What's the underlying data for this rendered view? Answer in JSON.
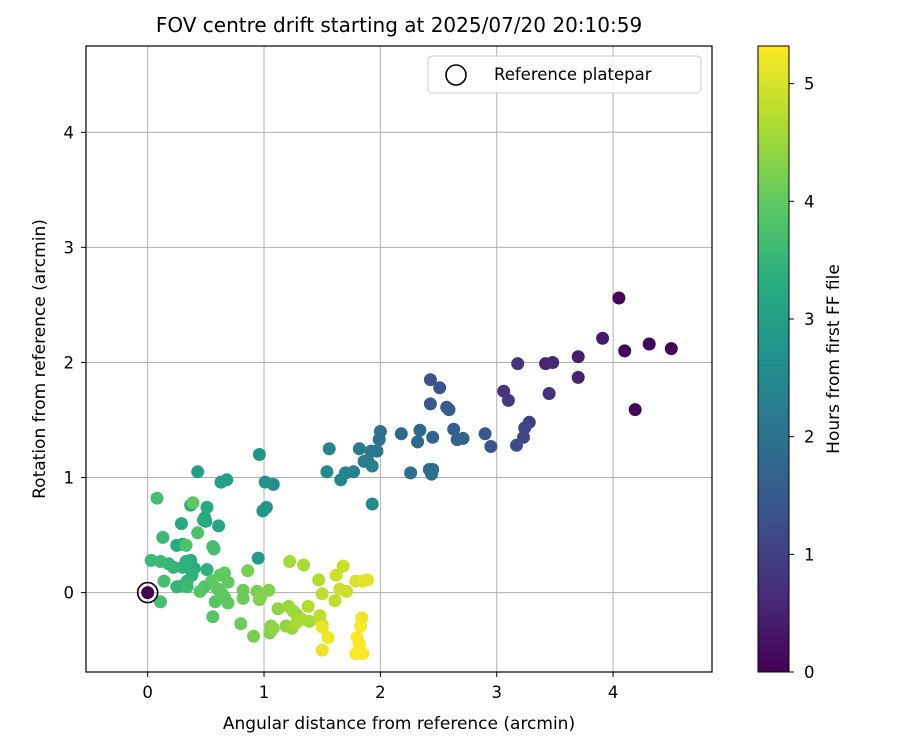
{
  "chart_data": {
    "type": "scatter",
    "title": "FOV centre drift starting at 2025/07/20 20:10:59",
    "xlabel": "Angular distance from reference (arcmin)",
    "ylabel": "Rotation from reference (arcmin)",
    "xlim": [
      -0.53,
      4.85
    ],
    "ylim": [
      -0.69,
      4.75
    ],
    "xticks": [
      0,
      1,
      2,
      3,
      4
    ],
    "yticks": [
      0,
      1,
      2,
      3,
      4
    ],
    "grid": true,
    "legend": {
      "entries": [
        "Reference platepar"
      ],
      "placement": "top-right",
      "marker": "open-circle"
    },
    "reference_point": {
      "x": 0,
      "y": 0
    },
    "colorbar": {
      "label": "Hours from first FF file",
      "colormap": "viridis",
      "range": [
        0,
        5.32
      ],
      "ticks": [
        0,
        1,
        2,
        3,
        4,
        5
      ]
    },
    "points": [
      {
        "x": 0.0,
        "y": 0.0,
        "c": 0.0
      },
      {
        "x": 4.05,
        "y": 2.56,
        "c": 0.05
      },
      {
        "x": 4.5,
        "y": 2.12,
        "c": 0.05
      },
      {
        "x": 4.1,
        "y": 2.1,
        "c": 0.08
      },
      {
        "x": 4.31,
        "y": 2.16,
        "c": 0.08
      },
      {
        "x": 4.19,
        "y": 1.59,
        "c": 0.1
      },
      {
        "x": 3.91,
        "y": 2.21,
        "c": 0.4
      },
      {
        "x": 3.7,
        "y": 2.05,
        "c": 0.45
      },
      {
        "x": 3.7,
        "y": 1.87,
        "c": 0.5
      },
      {
        "x": 3.42,
        "y": 1.99,
        "c": 0.55
      },
      {
        "x": 3.48,
        "y": 2.0,
        "c": 0.6
      },
      {
        "x": 3.45,
        "y": 1.73,
        "c": 0.7
      },
      {
        "x": 3.18,
        "y": 1.99,
        "c": 0.8
      },
      {
        "x": 3.06,
        "y": 1.75,
        "c": 0.8
      },
      {
        "x": 3.1,
        "y": 1.67,
        "c": 0.9
      },
      {
        "x": 3.28,
        "y": 1.48,
        "c": 1.0
      },
      {
        "x": 3.24,
        "y": 1.43,
        "c": 1.1
      },
      {
        "x": 3.23,
        "y": 1.35,
        "c": 1.1
      },
      {
        "x": 3.17,
        "y": 1.28,
        "c": 1.2
      },
      {
        "x": 2.43,
        "y": 1.85,
        "c": 1.3
      },
      {
        "x": 2.51,
        "y": 1.78,
        "c": 1.4
      },
      {
        "x": 2.95,
        "y": 1.27,
        "c": 1.4
      },
      {
        "x": 2.9,
        "y": 1.38,
        "c": 1.5
      },
      {
        "x": 2.57,
        "y": 1.61,
        "c": 1.5
      },
      {
        "x": 2.59,
        "y": 1.59,
        "c": 1.55
      },
      {
        "x": 2.43,
        "y": 1.64,
        "c": 1.5
      },
      {
        "x": 2.63,
        "y": 1.42,
        "c": 1.6
      },
      {
        "x": 2.66,
        "y": 1.33,
        "c": 1.7
      },
      {
        "x": 2.71,
        "y": 1.34,
        "c": 1.7
      },
      {
        "x": 2.45,
        "y": 1.35,
        "c": 1.7
      },
      {
        "x": 2.34,
        "y": 1.41,
        "c": 1.8
      },
      {
        "x": 2.32,
        "y": 1.31,
        "c": 1.8
      },
      {
        "x": 2.18,
        "y": 1.38,
        "c": 1.8
      },
      {
        "x": 2.42,
        "y": 1.07,
        "c": 1.9
      },
      {
        "x": 2.45,
        "y": 1.07,
        "c": 1.9
      },
      {
        "x": 2.44,
        "y": 1.03,
        "c": 1.95
      },
      {
        "x": 2.26,
        "y": 1.04,
        "c": 1.95
      },
      {
        "x": 2.0,
        "y": 1.4,
        "c": 2.0
      },
      {
        "x": 1.99,
        "y": 1.33,
        "c": 2.0
      },
      {
        "x": 1.92,
        "y": 1.23,
        "c": 2.1
      },
      {
        "x": 1.97,
        "y": 1.23,
        "c": 2.1
      },
      {
        "x": 1.82,
        "y": 1.25,
        "c": 2.2
      },
      {
        "x": 1.86,
        "y": 1.14,
        "c": 2.2
      },
      {
        "x": 1.89,
        "y": 1.15,
        "c": 2.2
      },
      {
        "x": 1.93,
        "y": 1.1,
        "c": 2.3
      },
      {
        "x": 1.77,
        "y": 1.05,
        "c": 2.3
      },
      {
        "x": 1.7,
        "y": 1.04,
        "c": 2.35
      },
      {
        "x": 1.66,
        "y": 0.98,
        "c": 2.4
      },
      {
        "x": 1.56,
        "y": 1.25,
        "c": 2.4
      },
      {
        "x": 1.54,
        "y": 1.05,
        "c": 2.5
      },
      {
        "x": 1.93,
        "y": 0.77,
        "c": 2.5
      },
      {
        "x": 1.08,
        "y": 0.94,
        "c": 2.6
      },
      {
        "x": 1.01,
        "y": 0.96,
        "c": 2.7
      },
      {
        "x": 0.96,
        "y": 1.2,
        "c": 2.8
      },
      {
        "x": 0.99,
        "y": 0.71,
        "c": 2.8
      },
      {
        "x": 1.02,
        "y": 0.74,
        "c": 2.8
      },
      {
        "x": 0.95,
        "y": 0.3,
        "c": 2.9
      },
      {
        "x": 0.68,
        "y": 0.98,
        "c": 3.0
      },
      {
        "x": 0.63,
        "y": 0.96,
        "c": 3.0
      },
      {
        "x": 0.43,
        "y": 1.05,
        "c": 3.0
      },
      {
        "x": 0.61,
        "y": 0.58,
        "c": 3.1
      },
      {
        "x": 0.49,
        "y": 0.65,
        "c": 3.1
      },
      {
        "x": 0.5,
        "y": 0.62,
        "c": 3.1
      },
      {
        "x": 0.51,
        "y": 0.74,
        "c": 3.2
      },
      {
        "x": 0.37,
        "y": 0.76,
        "c": 3.2
      },
      {
        "x": 0.29,
        "y": 0.6,
        "c": 3.2
      },
      {
        "x": 0.25,
        "y": 0.41,
        "c": 3.2
      },
      {
        "x": 0.3,
        "y": 0.42,
        "c": 3.3
      },
      {
        "x": 0.37,
        "y": 0.28,
        "c": 3.3
      },
      {
        "x": 0.4,
        "y": 0.21,
        "c": 3.3
      },
      {
        "x": 0.48,
        "y": 0.63,
        "c": 3.3
      },
      {
        "x": 0.33,
        "y": 0.27,
        "c": 3.4
      },
      {
        "x": 0.3,
        "y": 0.22,
        "c": 3.4
      },
      {
        "x": 0.51,
        "y": 0.2,
        "c": 3.4
      },
      {
        "x": 0.38,
        "y": 0.15,
        "c": 3.4
      },
      {
        "x": 0.34,
        "y": 0.1,
        "c": 3.5
      },
      {
        "x": 0.25,
        "y": 0.05,
        "c": 3.5
      },
      {
        "x": 0.22,
        "y": 0.22,
        "c": 3.5
      },
      {
        "x": 0.18,
        "y": 0.25,
        "c": 3.5
      },
      {
        "x": 0.3,
        "y": 0.06,
        "c": 3.5
      },
      {
        "x": 0.34,
        "y": 0.05,
        "c": 3.6
      },
      {
        "x": 0.11,
        "y": 0.27,
        "c": 3.6
      },
      {
        "x": 0.03,
        "y": 0.28,
        "c": 3.6
      },
      {
        "x": 0.13,
        "y": 0.48,
        "c": 3.6
      },
      {
        "x": 0.08,
        "y": 0.82,
        "c": 3.7
      },
      {
        "x": 0.56,
        "y": 0.4,
        "c": 3.7
      },
      {
        "x": 0.57,
        "y": 0.38,
        "c": 3.7
      },
      {
        "x": 0.14,
        "y": 0.1,
        "c": 3.7
      },
      {
        "x": 0.11,
        "y": -0.08,
        "c": 3.7
      },
      {
        "x": 0.33,
        "y": 0.41,
        "c": 3.8
      },
      {
        "x": 0.43,
        "y": 0.52,
        "c": 3.8
      },
      {
        "x": 0.39,
        "y": 0.78,
        "c": 4.0
      },
      {
        "x": 0.49,
        "y": 0.05,
        "c": 3.8
      },
      {
        "x": 0.45,
        "y": 0.01,
        "c": 3.9
      },
      {
        "x": 0.55,
        "y": 0.1,
        "c": 3.9
      },
      {
        "x": 0.56,
        "y": -0.21,
        "c": 3.9
      },
      {
        "x": 0.58,
        "y": -0.08,
        "c": 3.9
      },
      {
        "x": 0.62,
        "y": 0.15,
        "c": 4.0
      },
      {
        "x": 0.66,
        "y": -0.04,
        "c": 4.0
      },
      {
        "x": 0.69,
        "y": -0.09,
        "c": 4.0
      },
      {
        "x": 0.66,
        "y": 0.17,
        "c": 4.0
      },
      {
        "x": 0.69,
        "y": 0.09,
        "c": 4.0
      },
      {
        "x": 0.64,
        "y": -0.01,
        "c": 4.0
      },
      {
        "x": 0.6,
        "y": 0.03,
        "c": 4.0
      },
      {
        "x": 0.55,
        "y": 0.1,
        "c": 4.0
      },
      {
        "x": 0.8,
        "y": -0.27,
        "c": 4.1
      },
      {
        "x": 0.82,
        "y": 0.02,
        "c": 4.1
      },
      {
        "x": 0.82,
        "y": -0.05,
        "c": 4.1
      },
      {
        "x": 0.86,
        "y": 0.19,
        "c": 4.2
      },
      {
        "x": 0.94,
        "y": 0.01,
        "c": 4.2
      },
      {
        "x": 0.91,
        "y": -0.38,
        "c": 4.2
      },
      {
        "x": 0.96,
        "y": -0.06,
        "c": 4.2
      },
      {
        "x": 0.97,
        "y": -0.04,
        "c": 4.3
      },
      {
        "x": 1.04,
        "y": 0.02,
        "c": 4.3
      },
      {
        "x": 1.05,
        "y": -0.35,
        "c": 4.3
      },
      {
        "x": 1.06,
        "y": -0.29,
        "c": 4.3
      },
      {
        "x": 1.08,
        "y": -0.31,
        "c": 4.4
      },
      {
        "x": 1.12,
        "y": -0.14,
        "c": 4.4
      },
      {
        "x": 1.19,
        "y": -0.29,
        "c": 4.4
      },
      {
        "x": 1.21,
        "y": -0.12,
        "c": 4.5
      },
      {
        "x": 1.24,
        "y": -0.31,
        "c": 4.5
      },
      {
        "x": 1.25,
        "y": -0.16,
        "c": 4.5
      },
      {
        "x": 1.28,
        "y": -0.19,
        "c": 4.5
      },
      {
        "x": 1.22,
        "y": 0.27,
        "c": 4.6
      },
      {
        "x": 1.34,
        "y": 0.24,
        "c": 4.6
      },
      {
        "x": 1.32,
        "y": -0.23,
        "c": 4.6
      },
      {
        "x": 1.28,
        "y": -0.26,
        "c": 4.6
      },
      {
        "x": 1.39,
        "y": -0.25,
        "c": 4.6
      },
      {
        "x": 1.38,
        "y": -0.12,
        "c": 4.7
      },
      {
        "x": 1.47,
        "y": 0.11,
        "c": 4.7
      },
      {
        "x": 1.5,
        "y": -0.01,
        "c": 4.8
      },
      {
        "x": 1.48,
        "y": -0.2,
        "c": 4.8
      },
      {
        "x": 1.5,
        "y": -0.28,
        "c": 4.8
      },
      {
        "x": 1.61,
        "y": -0.07,
        "c": 4.8
      },
      {
        "x": 1.62,
        "y": 0.15,
        "c": 4.9
      },
      {
        "x": 1.65,
        "y": 0.03,
        "c": 4.9
      },
      {
        "x": 1.68,
        "y": 0.23,
        "c": 4.9
      },
      {
        "x": 1.71,
        "y": 0.01,
        "c": 4.9
      },
      {
        "x": 1.79,
        "y": 0.1,
        "c": 5.0
      },
      {
        "x": 1.85,
        "y": 0.1,
        "c": 5.1
      },
      {
        "x": 1.89,
        "y": 0.11,
        "c": 5.1
      },
      {
        "x": 1.5,
        "y": -0.3,
        "c": 5.2
      },
      {
        "x": 1.55,
        "y": -0.39,
        "c": 5.2
      },
      {
        "x": 1.5,
        "y": -0.5,
        "c": 5.2
      },
      {
        "x": 1.84,
        "y": -0.22,
        "c": 5.2
      },
      {
        "x": 1.83,
        "y": -0.29,
        "c": 5.3
      },
      {
        "x": 1.8,
        "y": -0.39,
        "c": 5.3
      },
      {
        "x": 1.82,
        "y": -0.45,
        "c": 5.3
      },
      {
        "x": 1.79,
        "y": -0.53,
        "c": 5.3
      },
      {
        "x": 1.85,
        "y": -0.53,
        "c": 5.3
      }
    ]
  }
}
